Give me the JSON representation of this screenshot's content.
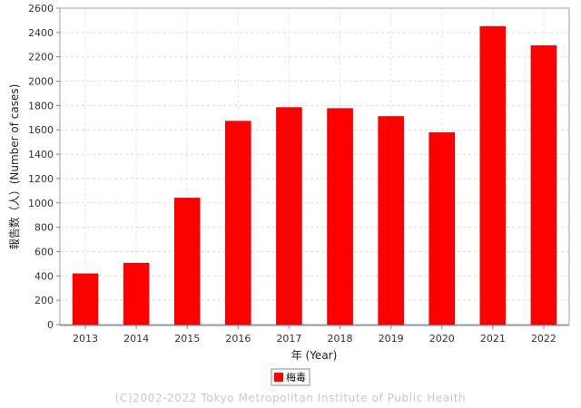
{
  "chart_data": {
    "type": "bar",
    "categories": [
      "2013",
      "2014",
      "2015",
      "2016",
      "2017",
      "2018",
      "2019",
      "2020",
      "2021",
      "2022"
    ],
    "series": [
      {
        "name": "梅毒",
        "values": [
          418,
          505,
          1040,
          1672,
          1784,
          1776,
          1710,
          1578,
          2450,
          2292
        ],
        "color": "#ff0000"
      }
    ],
    "xlabel": "年 (Year)",
    "ylabel": "報告数（人）(Number of cases)",
    "ylim": [
      0,
      2600
    ],
    "yticks": [
      0,
      200,
      400,
      600,
      800,
      1000,
      1200,
      1400,
      1600,
      1800,
      2000,
      2200,
      2400,
      2600
    ],
    "grid": true,
    "legend_position": "bottom-center"
  },
  "footer": {
    "copyright": "(C)2002-2022 Tokyo Metropolitan Institute of Public Health"
  }
}
